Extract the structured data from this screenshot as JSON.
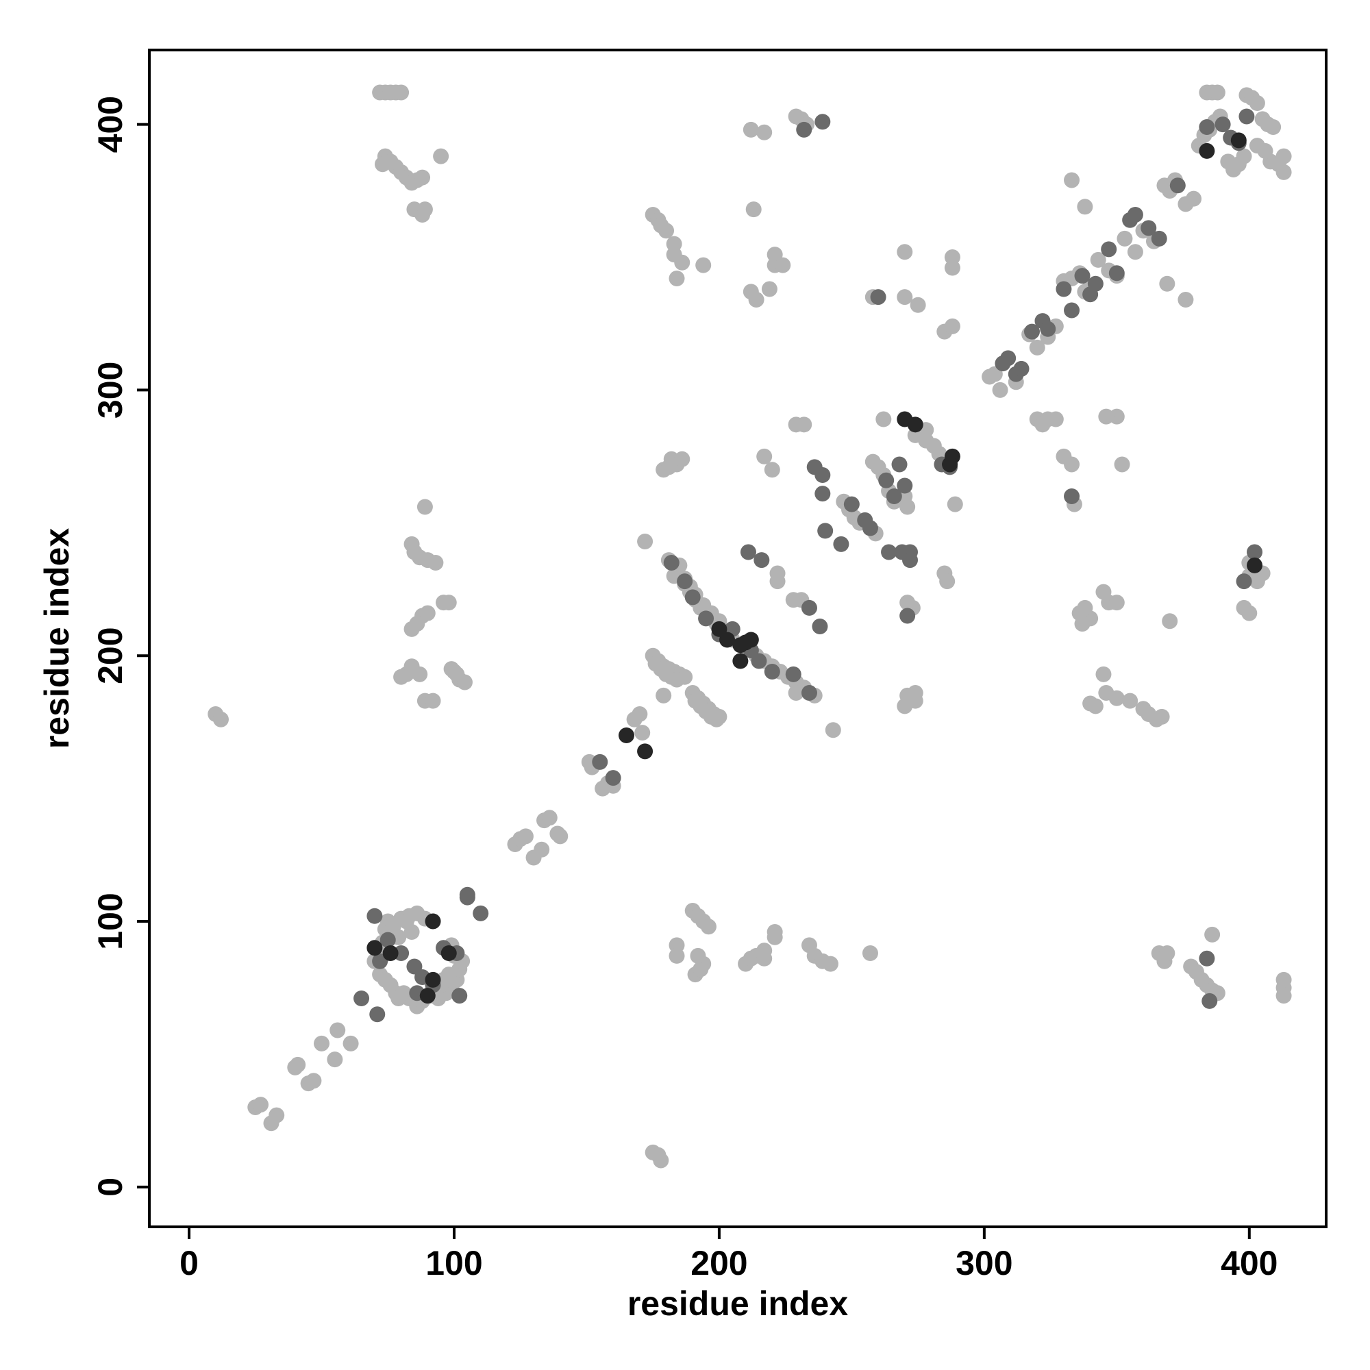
{
  "chart_data": {
    "type": "scatter",
    "xlabel": "residue index",
    "ylabel": "residue index",
    "xlim": [
      -15,
      429
    ],
    "ylim": [
      -15,
      428
    ],
    "xticks": [
      0,
      100,
      200,
      300,
      400
    ],
    "yticks": [
      0,
      100,
      200,
      300,
      400
    ],
    "series": [
      {
        "color": "#b3b3b3",
        "x": [
          25,
          27,
          31,
          33,
          40,
          41,
          45,
          47,
          50,
          55,
          56,
          61,
          72,
          73,
          74,
          75,
          77,
          80,
          83,
          86,
          89,
          79,
          72,
          74,
          76,
          78,
          80,
          83,
          86,
          88,
          91,
          94,
          97,
          99,
          101,
          102,
          103,
          100,
          99,
          84,
          82,
          74,
          73,
          70,
          92,
          95,
          96,
          98,
          79,
          81,
          123,
          125,
          127,
          130,
          133,
          134,
          136,
          139,
          140,
          151,
          152,
          156,
          158,
          160,
          168,
          170,
          171,
          175,
          177,
          179,
          181,
          183,
          185,
          187,
          176,
          178,
          180,
          182,
          184,
          190,
          192,
          194,
          196,
          198,
          200,
          191,
          193,
          195,
          197,
          199,
          187,
          189,
          191,
          193,
          196,
          199,
          202,
          205,
          210,
          214,
          217,
          220,
          223,
          226,
          229,
          232,
          236,
          229,
          181,
          183,
          185,
          187,
          189,
          191,
          194,
          197,
          200,
          172,
          179,
          243,
          10,
          12,
          175,
          177,
          178,
          72,
          74,
          76,
          78,
          80,
          74,
          76,
          78,
          80,
          82,
          84,
          86,
          88,
          85,
          88,
          89,
          95,
          73,
          89,
          84,
          85,
          87,
          90,
          93,
          96,
          98,
          88,
          86,
          84,
          90,
          87,
          84,
          82,
          80,
          89,
          92,
          99,
          101,
          102,
          104,
          100,
          190,
          192,
          194,
          196,
          191,
          193,
          194,
          192,
          184,
          184,
          210,
          212,
          214,
          217,
          217,
          221,
          221,
          234,
          236,
          239,
          242,
          257,
          175,
          177,
          178,
          180,
          183,
          183,
          184,
          186,
          194,
          213,
          212,
          217,
          212,
          214,
          219,
          221,
          221,
          224,
          229,
          231,
          233,
          179,
          182,
          184,
          186,
          181,
          217,
          220,
          222,
          222,
          228,
          231,
          229,
          232,
          258,
          262,
          258,
          260,
          262,
          247,
          249,
          251,
          253,
          257,
          259,
          264,
          266,
          270,
          271,
          271,
          273,
          271,
          270,
          274,
          274,
          270,
          270,
          275,
          285,
          288,
          285,
          286,
          288,
          288,
          289,
          276,
          278,
          281,
          283,
          286,
          274,
          276,
          278,
          302,
          304,
          306,
          312,
          317,
          320,
          324,
          327,
          330,
          333,
          336,
          338,
          340,
          343,
          347,
          350,
          353,
          357,
          360,
          364,
          368,
          370,
          372,
          376,
          379,
          381,
          383,
          385,
          387,
          389,
          392,
          394,
          396,
          398,
          399,
          401,
          403,
          405,
          407,
          409,
          408,
          411,
          413,
          413,
          406,
          384,
          386,
          388,
          403,
          320,
          322,
          324,
          327,
          330,
          333,
          334,
          333,
          338,
          350,
          346,
          352,
          340,
          337,
          336,
          345,
          347,
          350,
          338,
          346,
          345,
          340,
          342,
          350,
          355,
          360,
          362,
          365,
          367,
          370,
          366,
          368,
          369,
          378,
          380,
          382,
          384,
          386,
          388,
          386,
          413,
          413,
          413,
          400,
          398,
          400,
          403,
          405,
          400,
          376,
          369
        ],
        "y": [
          30,
          31,
          24,
          27,
          45,
          46,
          39,
          40,
          54,
          48,
          59,
          54,
          85,
          92,
          97,
          100,
          98,
          101,
          102,
          103,
          101,
          94,
          80,
          78,
          76,
          73,
          72,
          71,
          68,
          70,
          72,
          71,
          73,
          75,
          78,
          82,
          85,
          87,
          91,
          96,
          100,
          90,
          87,
          85,
          74,
          76,
          78,
          80,
          71,
          73,
          129,
          131,
          132,
          124,
          127,
          138,
          139,
          133,
          132,
          160,
          158,
          150,
          152,
          151,
          176,
          178,
          171,
          200,
          198,
          196,
          195,
          194,
          193,
          192,
          197,
          195,
          193,
          192,
          191,
          186,
          184,
          182,
          180,
          178,
          177,
          183,
          181,
          179,
          177,
          176,
          227,
          224,
          221,
          218,
          215,
          212,
          209,
          206,
          203,
          200,
          198,
          196,
          194,
          192,
          190,
          188,
          185,
          186,
          236,
          230,
          234,
          229,
          226,
          223,
          219,
          216,
          213,
          243,
          185,
          172,
          178,
          176,
          13,
          12,
          10,
          412,
          412,
          412,
          412,
          412,
          388,
          386,
          384,
          382,
          380,
          378,
          379,
          380,
          368,
          366,
          368,
          388,
          385,
          256,
          242,
          239,
          237,
          236,
          235,
          220,
          220,
          215,
          212,
          210,
          216,
          193,
          196,
          193,
          192,
          183,
          183,
          195,
          193,
          191,
          190,
          194,
          104,
          102,
          100,
          98,
          80,
          82,
          84,
          87,
          91,
          87,
          84,
          86,
          87,
          86,
          89,
          94,
          96,
          91,
          87,
          85,
          84,
          88,
          366,
          364,
          362,
          360,
          355,
          351,
          342,
          348,
          347,
          368,
          398,
          397,
          337,
          334,
          338,
          351,
          347,
          347,
          403,
          402,
          400,
          270,
          274,
          272,
          274,
          271,
          275,
          270,
          231,
          228,
          221,
          221,
          287,
          287,
          335,
          289,
          273,
          271,
          268,
          258,
          255,
          252,
          250,
          248,
          246,
          262,
          258,
          260,
          256,
          220,
          218,
          185,
          181,
          186,
          183,
          352,
          335,
          332,
          322,
          324,
          231,
          228,
          350,
          346,
          257,
          285,
          281,
          279,
          276,
          274,
          283,
          284,
          285,
          305,
          306,
          300,
          303,
          321,
          316,
          320,
          324,
          341,
          342,
          344,
          337,
          339,
          349,
          345,
          343,
          357,
          352,
          360,
          356,
          377,
          375,
          379,
          370,
          372,
          392,
          396,
          398,
          401,
          403,
          386,
          383,
          385,
          388,
          411,
          410,
          408,
          402,
          400,
          399,
          386,
          385,
          388,
          382,
          390,
          412,
          412,
          412,
          392,
          289,
          287,
          289,
          289,
          275,
          272,
          257,
          379,
          369,
          290,
          290,
          272,
          214,
          212,
          216,
          224,
          220,
          220,
          218,
          186,
          193,
          182,
          181,
          184,
          183,
          180,
          178,
          176,
          177,
          213,
          88,
          85,
          88,
          83,
          81,
          78,
          76,
          74,
          73,
          95,
          72,
          75,
          78,
          216,
          218,
          235,
          228,
          231,
          230,
          334,
          340
        ]
      },
      {
        "color": "#6a6a6a",
        "x": [
          65,
          71,
          105,
          105,
          110,
          160,
          155,
          182,
          187,
          190,
          195,
          200,
          205,
          212,
          215,
          220,
          228,
          234,
          211,
          216,
          234,
          238,
          240,
          236,
          239,
          239,
          246,
          250,
          255,
          257,
          263,
          264,
          268,
          270,
          266,
          269,
          272,
          272,
          271,
          260,
          232,
          239,
          307,
          309,
          312,
          314,
          318,
          322,
          324,
          330,
          333,
          337,
          340,
          342,
          347,
          350,
          355,
          357,
          362,
          366,
          373,
          384,
          390,
          393,
          396,
          399,
          398,
          402,
          385,
          384,
          333,
          287,
          284,
          70,
          75,
          80,
          85,
          88,
          96,
          101,
          102,
          92,
          72,
          86
        ],
        "y": [
          71,
          65,
          110,
          109,
          103,
          154,
          160,
          235,
          228,
          222,
          214,
          208,
          210,
          202,
          198,
          194,
          193,
          186,
          239,
          236,
          218,
          211,
          247,
          271,
          261,
          268,
          242,
          257,
          251,
          248,
          266,
          239,
          272,
          264,
          260,
          239,
          239,
          236,
          215,
          335,
          398,
          401,
          310,
          312,
          306,
          308,
          322,
          326,
          323,
          338,
          330,
          343,
          336,
          340,
          353,
          344,
          364,
          366,
          361,
          357,
          377,
          399,
          400,
          395,
          393,
          403,
          228,
          239,
          70,
          86,
          260,
          271,
          272,
          102,
          93,
          88,
          83,
          79,
          90,
          88,
          72,
          76,
          85,
          73
        ]
      },
      {
        "color": "#262626",
        "x": [
          70,
          76,
          92,
          98,
          90,
          92,
          165,
          172,
          200,
          203,
          208,
          210,
          212,
          208,
          270,
          274,
          288,
          287,
          396,
          384,
          402
        ],
        "y": [
          90,
          88,
          100,
          88,
          72,
          78,
          170,
          164,
          210,
          206,
          204,
          205,
          206,
          198,
          289,
          287,
          275,
          272,
          394,
          390,
          234
        ]
      }
    ]
  }
}
